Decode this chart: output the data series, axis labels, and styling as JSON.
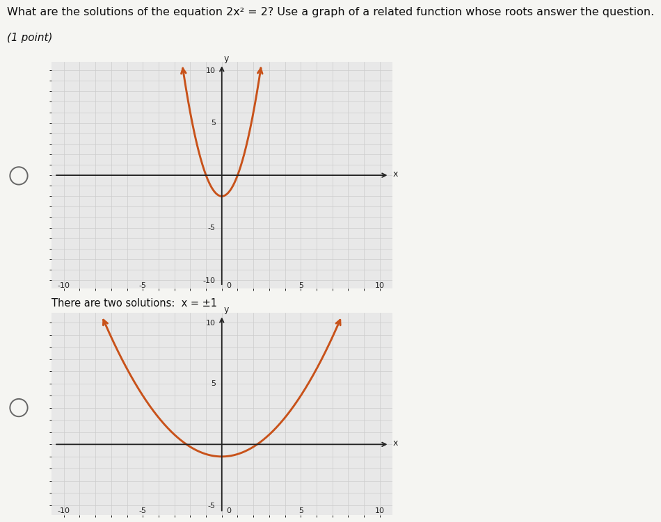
{
  "title_line1": "What are the solutions of the equation 2x² = 2? Use a graph of a related function whose roots answer the question.",
  "subtitle": "(1 point)",
  "answer_text": "There are two solutions:  x = ±1",
  "curve_color": "#C8521A",
  "axis_color": "#222222",
  "grid_minor_color": "#cccccc",
  "grid_major_color": "#bbbbbb",
  "plot_bg": "#e8e8e8",
  "page_bg": "#f5f5f2",
  "graph1": {
    "a": 2,
    "b": -2,
    "xlim": [
      -10,
      10
    ],
    "ylim": [
      -10,
      10
    ],
    "xtick_labels": [
      -10,
      -5,
      5,
      10
    ],
    "ytick_labels": [
      -10,
      -5,
      5,
      10
    ]
  },
  "graph2": {
    "a": 0.2,
    "b": -1,
    "xlim": [
      -10,
      10
    ],
    "ylim": [
      -5,
      10
    ],
    "xtick_labels": [
      -10,
      -5,
      5,
      10
    ],
    "ytick_labels": [
      -5,
      5,
      10
    ]
  }
}
